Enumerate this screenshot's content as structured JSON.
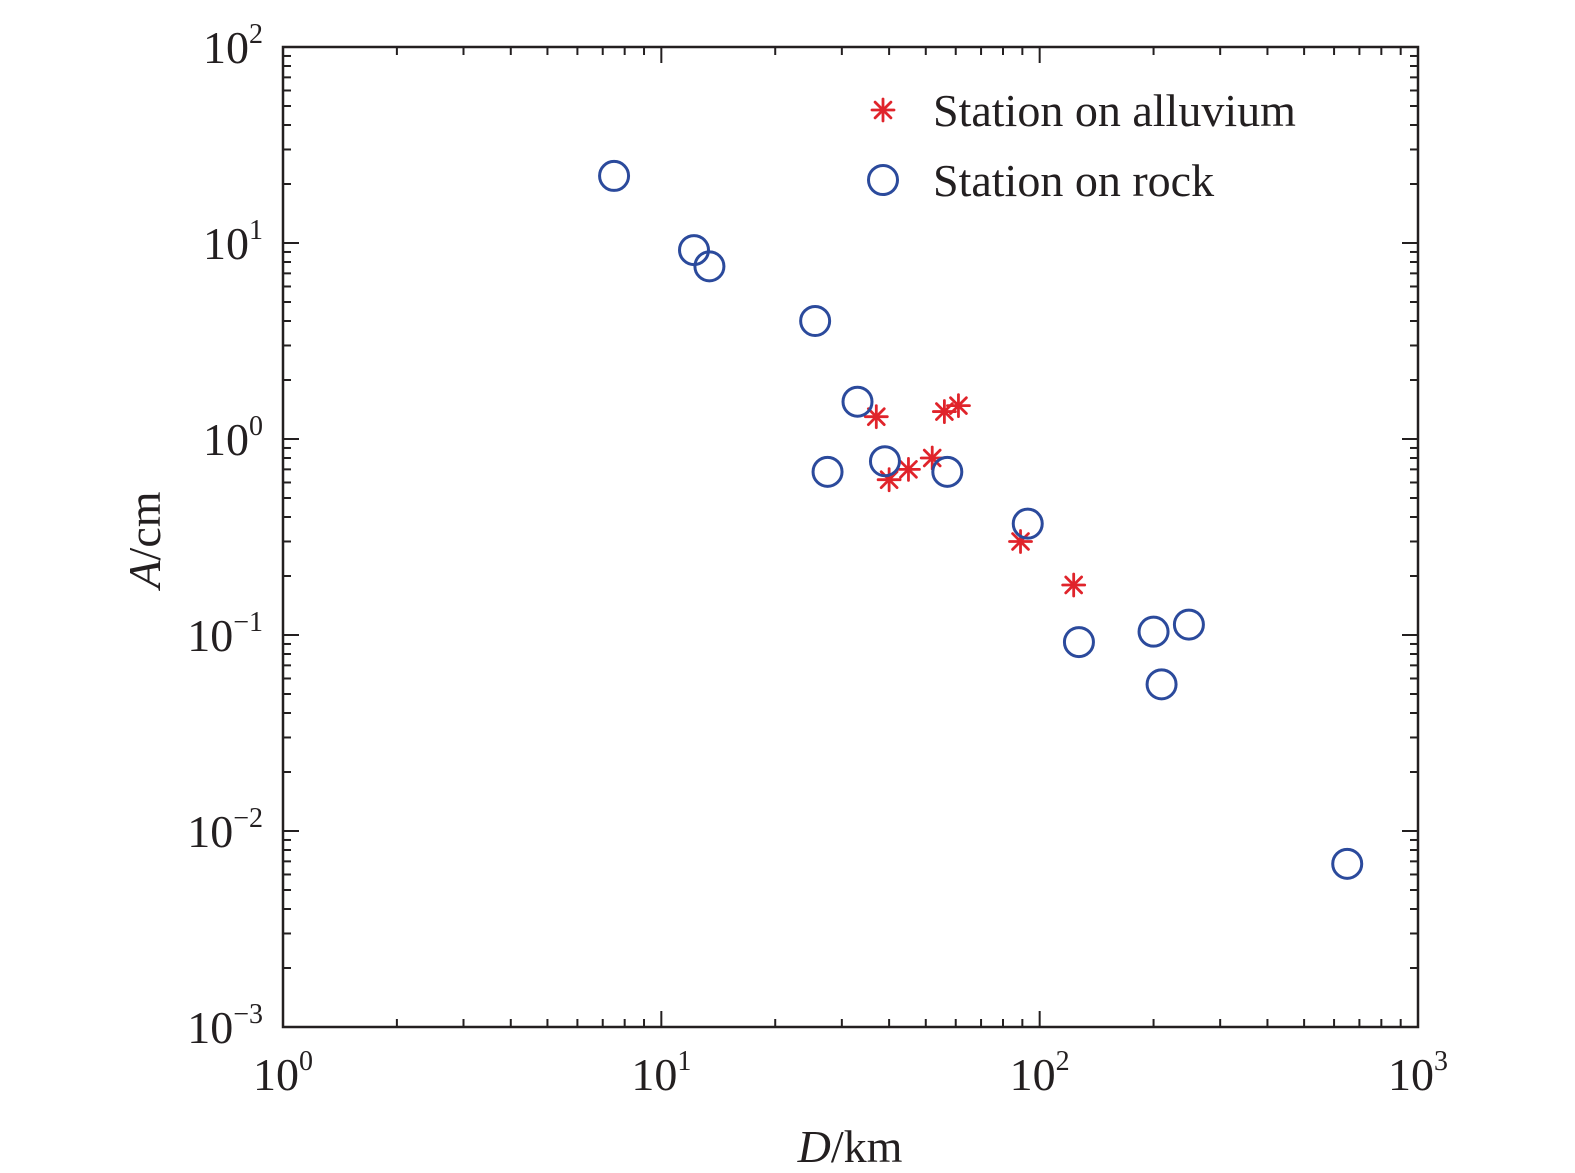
{
  "chart_data": {
    "type": "scatter",
    "x_scale": "log",
    "y_scale": "log",
    "xlim": [
      1,
      1000
    ],
    "ylim": [
      0.001,
      100
    ],
    "x_ticks": [
      {
        "base": "10",
        "exp": "0",
        "value": 1
      },
      {
        "base": "10",
        "exp": "1",
        "value": 10
      },
      {
        "base": "10",
        "exp": "2",
        "value": 100
      },
      {
        "base": "10",
        "exp": "3",
        "value": 1000
      }
    ],
    "y_ticks": [
      {
        "base": "10",
        "exp": "−3",
        "value": 0.001
      },
      {
        "base": "10",
        "exp": "−2",
        "value": 0.01
      },
      {
        "base": "10",
        "exp": "−1",
        "value": 0.1
      },
      {
        "base": "10",
        "exp": "0",
        "value": 1
      },
      {
        "base": "10",
        "exp": "1",
        "value": 10
      },
      {
        "base": "10",
        "exp": "2",
        "value": 100
      }
    ],
    "xlabel": {
      "var": "D",
      "unit": "/km"
    },
    "ylabel": {
      "var": "A",
      "unit": "/cm"
    },
    "grid": false,
    "legend_position": "top-right",
    "series": [
      {
        "name": "Station on alluvium",
        "marker": "asterisk",
        "color": "#e0242b",
        "points": [
          {
            "x": 37,
            "y": 1.3
          },
          {
            "x": 40,
            "y": 0.62
          },
          {
            "x": 45,
            "y": 0.7
          },
          {
            "x": 52,
            "y": 0.8
          },
          {
            "x": 56,
            "y": 1.38
          },
          {
            "x": 61,
            "y": 1.48
          },
          {
            "x": 89,
            "y": 0.3
          },
          {
            "x": 123,
            "y": 0.18
          }
        ]
      },
      {
        "name": "Station on rock",
        "marker": "circle",
        "color": "#2b4a9c",
        "points": [
          {
            "x": 7.5,
            "y": 22
          },
          {
            "x": 12.2,
            "y": 9.2
          },
          {
            "x": 13.4,
            "y": 7.6
          },
          {
            "x": 25.5,
            "y": 4.0
          },
          {
            "x": 27.5,
            "y": 0.68
          },
          {
            "x": 33,
            "y": 1.55
          },
          {
            "x": 39,
            "y": 0.77
          },
          {
            "x": 57,
            "y": 0.68
          },
          {
            "x": 93,
            "y": 0.37
          },
          {
            "x": 127,
            "y": 0.092
          },
          {
            "x": 200,
            "y": 0.104
          },
          {
            "x": 210,
            "y": 0.056
          },
          {
            "x": 248,
            "y": 0.113
          },
          {
            "x": 650,
            "y": 0.0068
          }
        ]
      }
    ]
  }
}
